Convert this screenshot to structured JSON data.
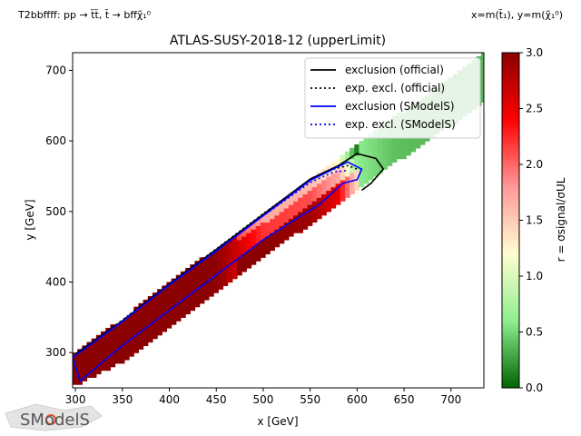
{
  "header": {
    "left_label": "T2bbffff: pp → t̃t̃, t̃ → bffχ̃₁⁰",
    "right_label": "x=m(t̃₁), y=m(χ̃₁⁰)"
  },
  "logo": {
    "text": "SModelS"
  },
  "chart_data": {
    "type": "heatmap",
    "title": "ATLAS-SUSY-2018-12 (upperLimit)",
    "xlabel": "x [GeV]",
    "ylabel": "y [GeV]",
    "colorbar_label": "r = σsignal/σUL",
    "xlim": [
      297,
      735
    ],
    "ylim": [
      250,
      725
    ],
    "xticks": [
      300,
      350,
      400,
      450,
      500,
      550,
      600,
      650,
      700
    ],
    "yticks": [
      300,
      400,
      500,
      600,
      700
    ],
    "colorbar": {
      "range": [
        0,
        3.0
      ],
      "ticks": [
        0.0,
        0.5,
        1.0,
        1.5,
        2.0,
        2.5,
        3.0
      ],
      "colors": [
        "#006400",
        "#90ee90",
        "#fffdd0",
        "#ff9999",
        "#ff0000",
        "#8b0000"
      ]
    },
    "legend": {
      "placement": "top-right",
      "entries": [
        {
          "label": "exclusion (official)",
          "color": "#000000",
          "style": "solid"
        },
        {
          "label": "exp. excl. (official)",
          "color": "#000000",
          "style": "dotted"
        },
        {
          "label": "exclusion (SModelS)",
          "color": "#0000ff",
          "style": "solid"
        },
        {
          "label": "exp. excl. (SModelS)",
          "color": "#0000ff",
          "style": "dotted"
        }
      ]
    },
    "band": {
      "x": [
        297,
        350,
        400,
        450,
        500,
        550,
        600,
        650,
        700,
        735
      ],
      "y_low": [
        255,
        290,
        340,
        388,
        437,
        485,
        535,
        580,
        625,
        660
      ],
      "y_high": [
        295,
        345,
        397,
        445,
        495,
        545,
        595,
        640,
        690,
        725
      ]
    },
    "r_trend": {
      "x": [
        300,
        400,
        450,
        500,
        550,
        580,
        600,
        640,
        700
      ],
      "r": [
        3.0,
        3.0,
        3.0,
        2.2,
        2.1,
        1.7,
        0.6,
        0.4,
        0.35
      ]
    },
    "lines": {
      "official_observed": {
        "x": [
          300,
          350,
          400,
          450,
          500,
          550,
          580,
          600,
          620,
          628,
          615,
          605
        ],
        "y": [
          298,
          345,
          397,
          446,
          496,
          546,
          565,
          582,
          575,
          560,
          540,
          530
        ]
      },
      "official_expected": {
        "x": [
          300,
          350,
          400,
          450,
          500,
          550,
          575,
          590,
          600
        ],
        "y": [
          298,
          346,
          398,
          447,
          497,
          545,
          560,
          565,
          560
        ]
      },
      "smodels_observed": {
        "x": [
          297,
          350,
          400,
          450,
          500,
          550,
          590,
          605,
          600,
          585,
          560,
          500,
          450,
          400,
          350,
          305,
          297
        ],
        "y": [
          293,
          344,
          396,
          444,
          494,
          544,
          570,
          560,
          545,
          540,
          510,
          460,
          410,
          360,
          310,
          260,
          293
        ]
      },
      "smodels_expected": {
        "x": [
          297,
          350,
          400,
          450,
          500,
          550,
          575,
          590
        ],
        "y": [
          293,
          344,
          396,
          444,
          494,
          541,
          556,
          558
        ]
      }
    }
  }
}
